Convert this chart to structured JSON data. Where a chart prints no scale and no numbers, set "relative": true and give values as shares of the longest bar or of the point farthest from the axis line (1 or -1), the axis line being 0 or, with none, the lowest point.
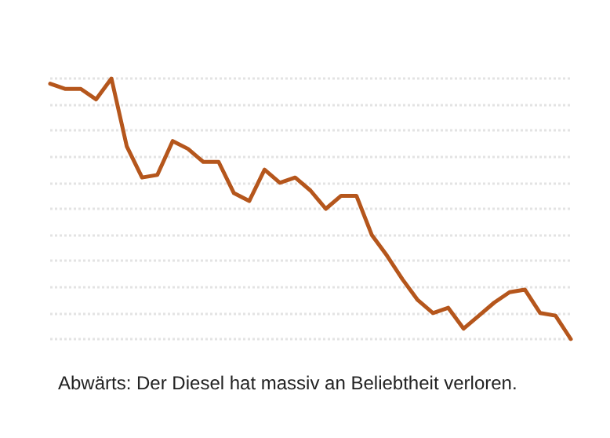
{
  "chart_data": {
    "type": "line",
    "relative": true,
    "categories": [
      null,
      null,
      null,
      null,
      null,
      null,
      null,
      null,
      null,
      null,
      null,
      null,
      null,
      null,
      null,
      null,
      null,
      null,
      null,
      null,
      null,
      null,
      null,
      null,
      null,
      null,
      null,
      null,
      null,
      null,
      null,
      null,
      null,
      null,
      null
    ],
    "series": [
      {
        "color": "#b5561c",
        "values": [
          0.98,
          0.96,
          0.96,
          0.92,
          1,
          0.74,
          0.62,
          0.63,
          0.76,
          0.73,
          0.68,
          0.68,
          0.56,
          0.53,
          0.65,
          0.6,
          0.62,
          0.57,
          0.5,
          0.55,
          0.55,
          0.4,
          0.32,
          0.23,
          0.15,
          0.1,
          0.12,
          0.04,
          0.09,
          0.14,
          0.18,
          0.19,
          0.1,
          0.09,
          0
        ]
      }
    ],
    "grid": "y",
    "marker": "none",
    "line_style": "solid",
    "annotations": [
      "Abwärts: Der Diesel hat massiv an Beliebtheit verloren."
    ]
  }
}
